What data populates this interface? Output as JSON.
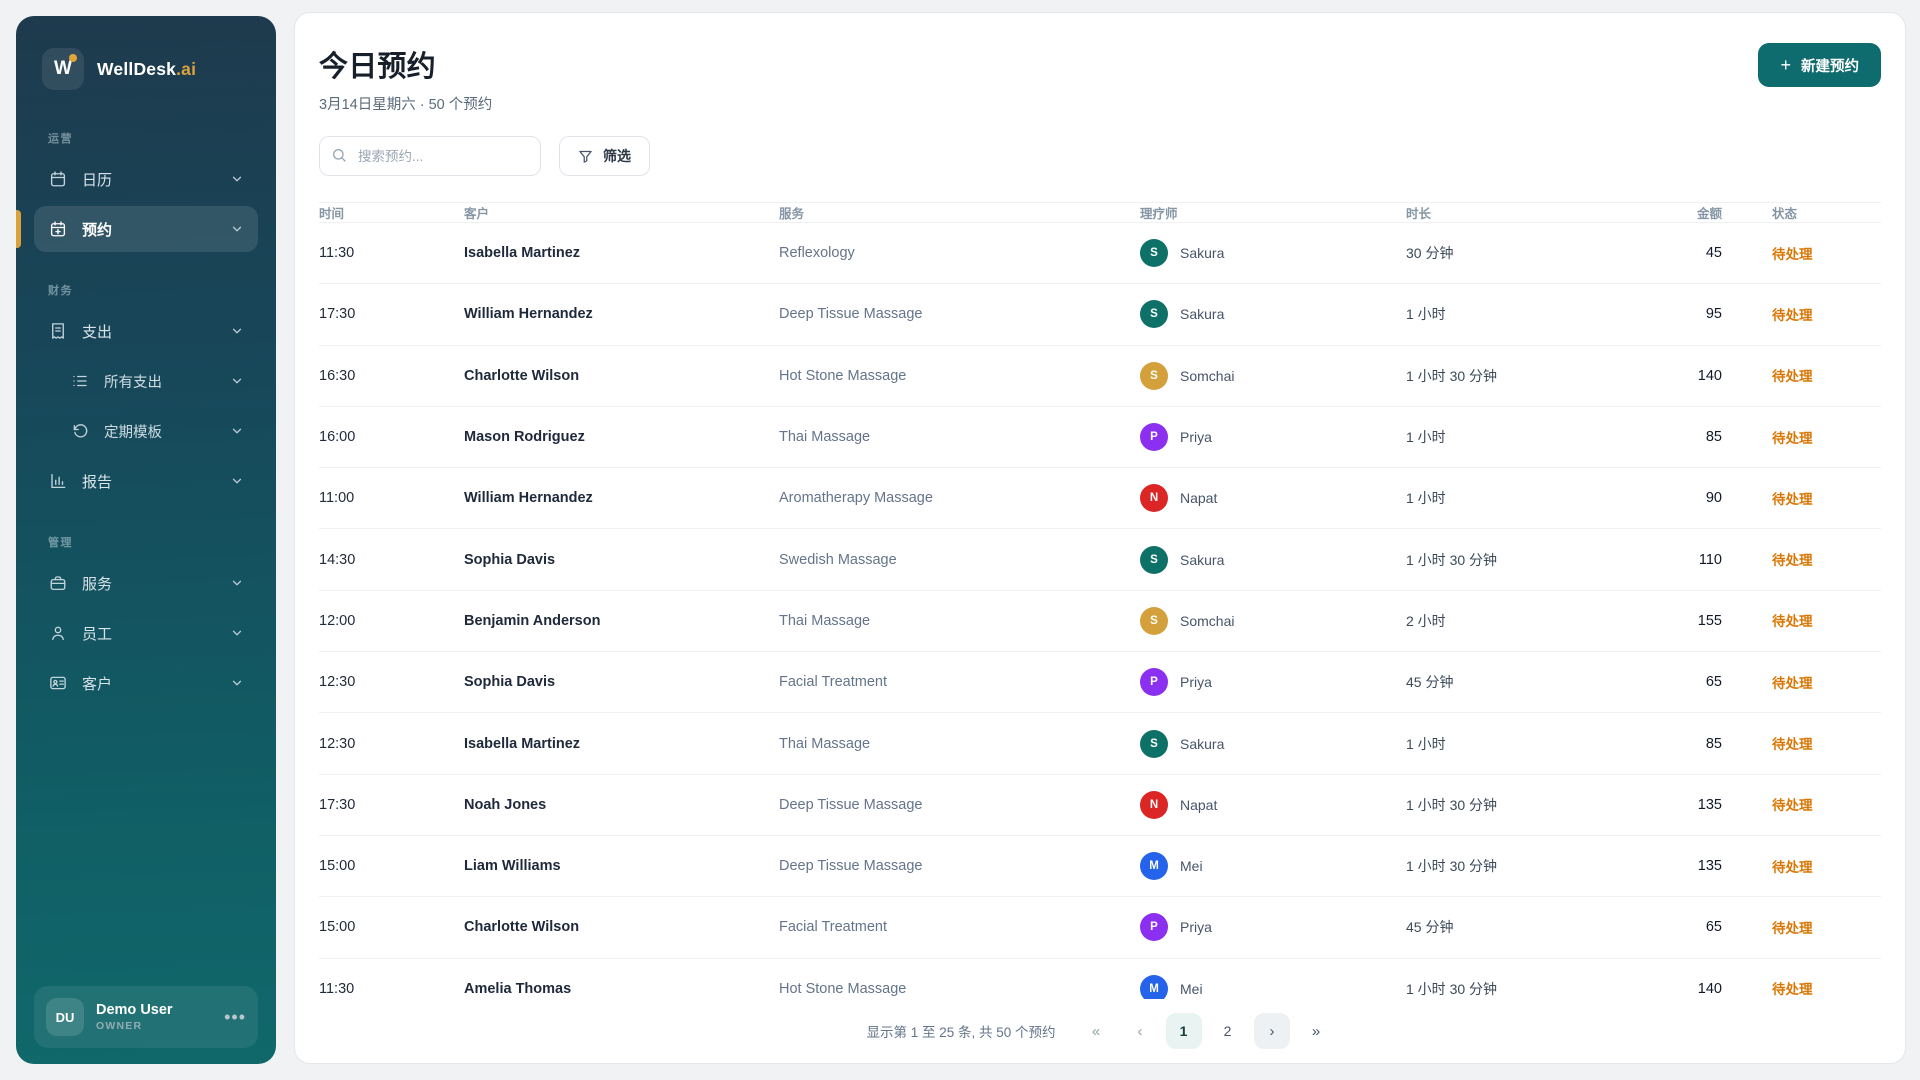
{
  "sidebar": {
    "logo": {
      "initial": "W",
      "brand": "WellDesk",
      "suffix": ".ai"
    },
    "sections": [
      {
        "label": "运营",
        "items": [
          {
            "label": "日历",
            "icon": "calendar-icon",
            "active": false,
            "sub": false,
            "chevron": false
          },
          {
            "label": "预约",
            "icon": "calendar-plus-icon",
            "active": true,
            "sub": false,
            "chevron": false
          }
        ]
      },
      {
        "label": "财务",
        "items": [
          {
            "label": "支出",
            "icon": "receipt-icon",
            "active": false,
            "sub": false,
            "chevron": true
          },
          {
            "label": "所有支出",
            "icon": "list-icon",
            "active": false,
            "sub": true,
            "chevron": false
          },
          {
            "label": "定期模板",
            "icon": "history-icon",
            "active": false,
            "sub": true,
            "chevron": false
          },
          {
            "label": "报告",
            "icon": "bar-chart-icon",
            "active": false,
            "sub": false,
            "chevron": false
          }
        ]
      },
      {
        "label": "管理",
        "items": [
          {
            "label": "服务",
            "icon": "briefcase-icon",
            "active": false,
            "sub": false,
            "chevron": false
          },
          {
            "label": "员工",
            "icon": "user-icon",
            "active": false,
            "sub": false,
            "chevron": false
          },
          {
            "label": "客户",
            "icon": "contact-card-icon",
            "active": false,
            "sub": false,
            "chevron": false
          }
        ]
      }
    ],
    "user": {
      "initials": "DU",
      "name": "Demo User",
      "role": "OWNER",
      "more": "•••"
    }
  },
  "header": {
    "title": "今日预约",
    "subtitle": "3月14日星期六 · 50 个预约",
    "search_placeholder": "搜索预约...",
    "filter_label": "筛选",
    "new_button_label": "新建预约",
    "new_button_plus": "+"
  },
  "table": {
    "columns": [
      "时间",
      "客户",
      "服务",
      "理疗师",
      "时长",
      "金额",
      "状态"
    ],
    "status_pending_label": "待处理",
    "therapist_colors": {
      "Sakura": "#0e7168",
      "Somchai": "#d4a03c",
      "Priya": "#8b2ff0",
      "Napat": "#dc2626",
      "Mei": "#2563eb"
    },
    "rows": [
      {
        "time": "11:30",
        "customer": "Isabella Martinez",
        "service": "Reflexology",
        "therapist": "Sakura",
        "initial": "S",
        "duration": "30 分钟",
        "amount": "45",
        "status": "待处理"
      },
      {
        "time": "17:30",
        "customer": "William Hernandez",
        "service": "Deep Tissue Massage",
        "therapist": "Sakura",
        "initial": "S",
        "duration": "1 小时",
        "amount": "95",
        "status": "待处理"
      },
      {
        "time": "16:30",
        "customer": "Charlotte Wilson",
        "service": "Hot Stone Massage",
        "therapist": "Somchai",
        "initial": "S",
        "duration": "1 小时 30 分钟",
        "amount": "140",
        "status": "待处理"
      },
      {
        "time": "16:00",
        "customer": "Mason Rodriguez",
        "service": "Thai Massage",
        "therapist": "Priya",
        "initial": "P",
        "duration": "1 小时",
        "amount": "85",
        "status": "待处理"
      },
      {
        "time": "11:00",
        "customer": "William Hernandez",
        "service": "Aromatherapy Massage",
        "therapist": "Napat",
        "initial": "N",
        "duration": "1 小时",
        "amount": "90",
        "status": "待处理"
      },
      {
        "time": "14:30",
        "customer": "Sophia Davis",
        "service": "Swedish Massage",
        "therapist": "Sakura",
        "initial": "S",
        "duration": "1 小时 30 分钟",
        "amount": "110",
        "status": "待处理"
      },
      {
        "time": "12:00",
        "customer": "Benjamin Anderson",
        "service": "Thai Massage",
        "therapist": "Somchai",
        "initial": "S",
        "duration": "2 小时",
        "amount": "155",
        "status": "待处理"
      },
      {
        "time": "12:30",
        "customer": "Sophia Davis",
        "service": "Facial Treatment",
        "therapist": "Priya",
        "initial": "P",
        "duration": "45 分钟",
        "amount": "65",
        "status": "待处理"
      },
      {
        "time": "12:30",
        "customer": "Isabella Martinez",
        "service": "Thai Massage",
        "therapist": "Sakura",
        "initial": "S",
        "duration": "1 小时",
        "amount": "85",
        "status": "待处理"
      },
      {
        "time": "17:30",
        "customer": "Noah Jones",
        "service": "Deep Tissue Massage",
        "therapist": "Napat",
        "initial": "N",
        "duration": "1 小时 30 分钟",
        "amount": "135",
        "status": "待处理"
      },
      {
        "time": "15:00",
        "customer": "Liam Williams",
        "service": "Deep Tissue Massage",
        "therapist": "Mei",
        "initial": "M",
        "duration": "1 小时 30 分钟",
        "amount": "135",
        "status": "待处理"
      },
      {
        "time": "15:00",
        "customer": "Charlotte Wilson",
        "service": "Facial Treatment",
        "therapist": "Priya",
        "initial": "P",
        "duration": "45 分钟",
        "amount": "65",
        "status": "待处理"
      },
      {
        "time": "11:30",
        "customer": "Amelia Thomas",
        "service": "Hot Stone Massage",
        "therapist": "Mei",
        "initial": "M",
        "duration": "1 小时 30 分钟",
        "amount": "140",
        "status": "待处理"
      }
    ]
  },
  "pagination": {
    "summary": "显示第 1 至 25 条, 共 50 个预约",
    "first": "«",
    "prev": "‹",
    "next": "›",
    "last": "»",
    "pages": [
      "1",
      "2"
    ],
    "current": "1"
  },
  "colors": {
    "sidebar_top": "#1e3a4d",
    "sidebar_bottom": "#10686b",
    "accent_amber": "#d9a23e",
    "primary_teal": "#0e6b6e",
    "status_pending": "#d97706",
    "page_bg": "#f0f2f4"
  }
}
